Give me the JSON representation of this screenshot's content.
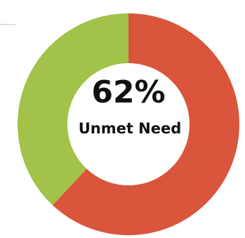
{
  "chart_data": {
    "type": "donut",
    "categories": [
      "Unmet Need",
      null
    ],
    "values": [
      62,
      38
    ],
    "value_labels": [
      "62%",
      null
    ],
    "colors": [
      "#d9553b",
      "#a3c24a"
    ]
  }
}
